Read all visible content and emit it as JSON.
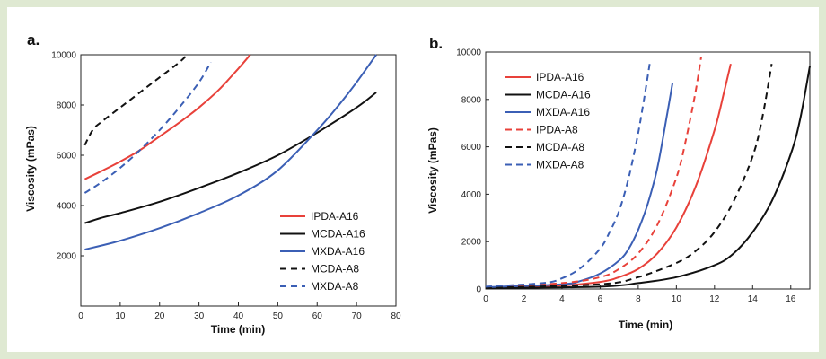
{
  "chart_data": [
    {
      "panel_label": "a.",
      "type": "line",
      "title": "",
      "xlabel": "Time (min)",
      "ylabel": "Viscosity (mPas)",
      "xlim": [
        0,
        80
      ],
      "ylim": [
        0,
        10000
      ],
      "xticks": [
        0,
        10,
        20,
        30,
        40,
        50,
        60,
        70,
        80
      ],
      "yticks": [
        2000,
        4000,
        6000,
        8000,
        10000
      ],
      "legend_position": "bottom-right",
      "series": [
        {
          "name": "IPDA-A16",
          "color": "#e8413a",
          "dash": "solid",
          "x": [
            1,
            5,
            10,
            15,
            20,
            25,
            30,
            35,
            40,
            43
          ],
          "y": [
            5050,
            5350,
            5750,
            6200,
            6750,
            7300,
            7900,
            8600,
            9450,
            10000
          ]
        },
        {
          "name": "MCDA-A16",
          "color": "#111111",
          "dash": "solid",
          "x": [
            1,
            5,
            10,
            20,
            30,
            40,
            50,
            60,
            70,
            75
          ],
          "y": [
            3300,
            3500,
            3700,
            4150,
            4700,
            5300,
            6000,
            6900,
            7900,
            8500
          ]
        },
        {
          "name": "MXDA-A16",
          "color": "#3b5fb5",
          "dash": "solid",
          "x": [
            1,
            10,
            20,
            30,
            40,
            50,
            60,
            65,
            70,
            75
          ],
          "y": [
            2250,
            2600,
            3100,
            3700,
            4400,
            5400,
            7000,
            7900,
            8900,
            10000
          ]
        },
        {
          "name": "MCDA-A8",
          "color": "#111111",
          "dash": "dashed",
          "x": [
            1,
            3,
            5,
            10,
            15,
            20,
            25,
            27
          ],
          "y": [
            6400,
            7000,
            7300,
            7900,
            8500,
            9100,
            9700,
            10000
          ]
        },
        {
          "name": "MXDA-A8",
          "color": "#3b5fb5",
          "dash": "dashed",
          "x": [
            1,
            5,
            10,
            15,
            20,
            25,
            30,
            33
          ],
          "y": [
            4500,
            4900,
            5500,
            6200,
            7000,
            7900,
            8900,
            9700
          ]
        }
      ]
    },
    {
      "panel_label": "b.",
      "type": "line",
      "title": "",
      "xlabel": "Time (min)",
      "ylabel": "Viscosity (mPas)",
      "xlim": [
        0,
        17
      ],
      "ylim": [
        0,
        10000
      ],
      "xticks": [
        0,
        2,
        4,
        6,
        8,
        10,
        12,
        14,
        16
      ],
      "yticks": [
        0,
        2000,
        4000,
        6000,
        8000,
        10000
      ],
      "legend_position": "top-left",
      "series": [
        {
          "name": "IPDA-A16",
          "color": "#e8413a",
          "dash": "solid",
          "x": [
            0,
            4,
            6,
            7,
            8,
            9,
            10,
            11,
            12,
            12.5,
            12.85
          ],
          "y": [
            50,
            150,
            300,
            500,
            850,
            1500,
            2600,
            4300,
            6700,
            8300,
            9500
          ]
        },
        {
          "name": "MCDA-A16",
          "color": "#111111",
          "dash": "solid",
          "x": [
            0,
            6,
            8,
            10,
            12,
            13,
            14,
            15,
            16,
            16.5,
            17
          ],
          "y": [
            30,
            100,
            250,
            500,
            1000,
            1500,
            2400,
            3700,
            5700,
            7200,
            9400
          ]
        },
        {
          "name": "MXDA-A16",
          "color": "#3b5fb5",
          "dash": "solid",
          "x": [
            0,
            4,
            5,
            6,
            7,
            7.5,
            8,
            8.5,
            9,
            9.5,
            9.8
          ],
          "y": [
            80,
            200,
            350,
            650,
            1200,
            1700,
            2500,
            3600,
            5100,
            7300,
            8700
          ]
        },
        {
          "name": "IPDA-A8",
          "color": "#e8413a",
          "dash": "dashed",
          "x": [
            0,
            4,
            6,
            7,
            8,
            9,
            10,
            10.5,
            11,
            11.3
          ],
          "y": [
            80,
            250,
            500,
            850,
            1500,
            2700,
            4700,
            6300,
            8300,
            9800
          ]
        },
        {
          "name": "MCDA-A8",
          "color": "#111111",
          "dash": "dashed",
          "x": [
            0,
            6,
            8,
            10,
            11,
            12,
            13,
            14,
            14.5,
            15
          ],
          "y": [
            50,
            200,
            500,
            1100,
            1600,
            2400,
            3700,
            5600,
            7200,
            9500
          ]
        },
        {
          "name": "MXDA-A8",
          "color": "#3b5fb5",
          "dash": "dashed",
          "x": [
            0,
            3,
            4,
            5,
            6,
            6.5,
            7,
            7.5,
            8,
            8.3,
            8.6
          ],
          "y": [
            100,
            250,
            450,
            900,
            1700,
            2400,
            3300,
            4700,
            6600,
            8000,
            9500
          ]
        }
      ]
    }
  ]
}
